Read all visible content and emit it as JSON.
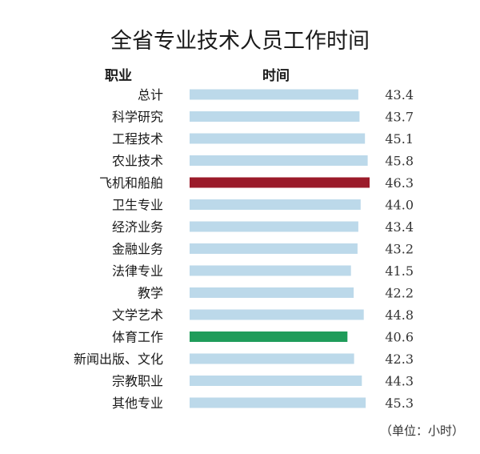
{
  "chart_data": {
    "type": "bar",
    "orientation": "horizontal",
    "title": "全省专业技术人员工作时间",
    "category_header": "职业",
    "value_header": "时间",
    "unit_note": "（单位：小时）",
    "categories": [
      "总计",
      "科学研究",
      "工程技术",
      "农业技术",
      "飞机和船舶",
      "卫生专业",
      "经济业务",
      "金融业务",
      "法律专业",
      "教学",
      "文学艺术",
      "体育工作",
      "新闻出版、文化",
      "宗教职业",
      "其他专业"
    ],
    "values": [
      43.4,
      43.7,
      45.1,
      45.8,
      46.3,
      44.0,
      43.4,
      43.2,
      41.5,
      42.2,
      44.8,
      40.6,
      42.3,
      44.3,
      45.3
    ],
    "value_labels": [
      "43.4",
      "43.7",
      "45.1",
      "45.8",
      "46.3",
      "44.0",
      "43.4",
      "43.2",
      "41.5",
      "42.2",
      "44.8",
      "40.6",
      "42.3",
      "44.3",
      "45.3"
    ],
    "highlight": {
      "max_index": 4,
      "min_index": 11
    },
    "colors": {
      "default": "#bcd9ea",
      "max": "#9b1b2a",
      "min": "#1f9c5a",
      "text": "#1a1a1a",
      "value_text": "#333333"
    },
    "grid": false,
    "legend": "none"
  }
}
